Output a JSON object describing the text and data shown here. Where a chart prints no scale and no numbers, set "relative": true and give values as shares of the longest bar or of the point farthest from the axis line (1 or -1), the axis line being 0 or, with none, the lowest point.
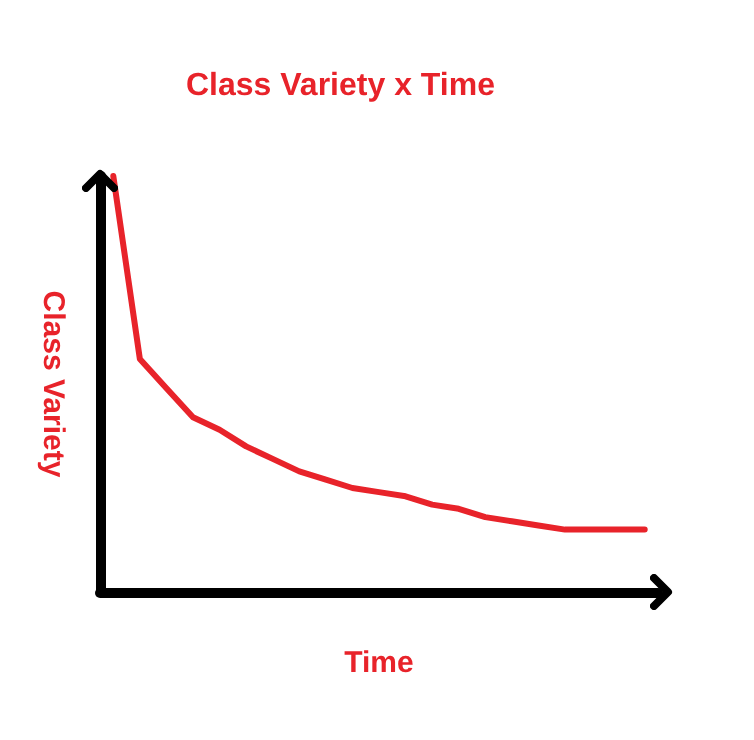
{
  "chart_data": {
    "type": "line",
    "title": "Class Variety x Time",
    "xlabel": "Time",
    "ylabel": "Class Variety",
    "relative": true,
    "categories": [
      null,
      null,
      null,
      null,
      null,
      null,
      null,
      null,
      null,
      null,
      null,
      null,
      null,
      null,
      null,
      null,
      null,
      null,
      null,
      null,
      null
    ],
    "series": [
      {
        "color": "#e8232a",
        "values": [
          1.0,
          0.56,
          0.49,
          0.42,
          0.39,
          0.35,
          0.32,
          0.29,
          0.27,
          0.25,
          0.24,
          0.23,
          0.21,
          0.2,
          0.18,
          0.17,
          0.16,
          0.15,
          0.15,
          0.15,
          0.15
        ]
      }
    ],
    "grid": false,
    "marker": "none",
    "line_style": "solid"
  }
}
